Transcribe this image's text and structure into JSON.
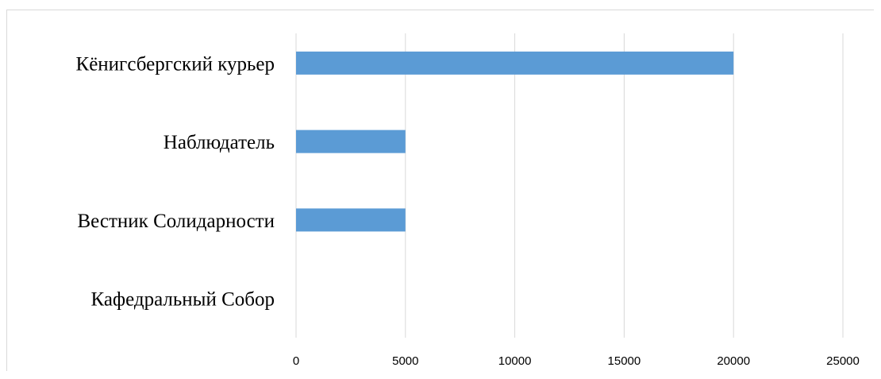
{
  "chart_data": {
    "type": "bar",
    "orientation": "horizontal",
    "title": "",
    "xlabel": "",
    "ylabel": "",
    "categories": [
      "Кёнигсбергский курьер",
      "Наблюдатель",
      "Вестник Солидарности",
      "Кафедральный Собор"
    ],
    "values": [
      20000,
      5000,
      5000,
      0
    ],
    "xlim": [
      0,
      25000
    ],
    "xticks": [
      0,
      5000,
      10000,
      15000,
      20000,
      25000
    ],
    "grid": true,
    "legend": "none",
    "bar_color": "#5b9bd5"
  }
}
